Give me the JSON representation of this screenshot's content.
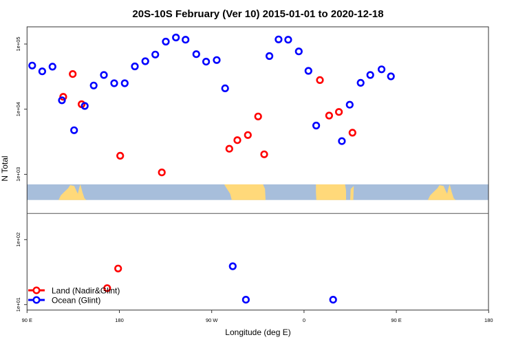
{
  "chart_data": {
    "type": "scatter",
    "title": "20S-10S February (Ver 10)   2015-01-01 to 2020-12-18",
    "xlabel": "Longitude (deg E)",
    "ylabel": "N Total",
    "x_axis_wraps": "90 E to 180 (450 degrees, longitudes 90 E-180 repeated)",
    "x_ticks": [
      "90 E",
      "180",
      "90 W",
      "0",
      "90 E",
      "180"
    ],
    "y_scale": "log",
    "panels": [
      {
        "name": "upper",
        "y_ticks": [
          "1e+05",
          "1e+04",
          "1e+03"
        ],
        "ylim": [
          250,
          184000
        ]
      },
      {
        "name": "lower",
        "y_ticks": [
          "1e+02",
          "1e+01"
        ],
        "ylim": [
          8.2,
          250
        ]
      }
    ],
    "grid": false,
    "legend_position": "bottom-left",
    "land_mask_strip": {
      "land_color": "#ffd97a",
      "ocean_color": "#a7bedb"
    },
    "series": [
      {
        "name": "Land (Nadir&Glint)",
        "color": "#ff0000",
        "points": [
          {
            "lon": 125.3,
            "n": 15500
          },
          {
            "lon": 134.5,
            "n": 34600
          },
          {
            "lon": 143.2,
            "n": 11900
          },
          {
            "lon": -179.2,
            "n": 1930
          },
          {
            "lon": -138.6,
            "n": 1070
          },
          {
            "lon": -72.8,
            "n": 2470
          },
          {
            "lon": -65.0,
            "n": 3350
          },
          {
            "lon": -54.7,
            "n": 4010
          },
          {
            "lon": -44.7,
            "n": 7730
          },
          {
            "lon": -38.8,
            "n": 2030
          },
          {
            "lon": 15.5,
            "n": 28000
          },
          {
            "lon": 24.5,
            "n": 7980
          },
          {
            "lon": 34.0,
            "n": 9080
          },
          {
            "lon": 47.2,
            "n": 4350
          },
          {
            "lon": 168.1,
            "n": 17.9
          },
          {
            "lon": 178.8,
            "n": 35.9
          }
        ]
      },
      {
        "name": "Ocean (Glint)",
        "color": "#0000ff",
        "points": [
          {
            "lon": 95.0,
            "n": 46700
          },
          {
            "lon": 104.8,
            "n": 38100
          },
          {
            "lon": 114.8,
            "n": 44900
          },
          {
            "lon": 124.0,
            "n": 13700
          },
          {
            "lon": 135.9,
            "n": 4750
          },
          {
            "lon": 146.3,
            "n": 11200
          },
          {
            "lon": 155.0,
            "n": 23100
          },
          {
            "lon": 164.9,
            "n": 33500
          },
          {
            "lon": 175.0,
            "n": 25000
          },
          {
            "lon": -174.8,
            "n": 25000
          },
          {
            "lon": -164.9,
            "n": 45400
          },
          {
            "lon": -154.7,
            "n": 54500
          },
          {
            "lon": -145.0,
            "n": 68900
          },
          {
            "lon": -134.7,
            "n": 109000
          },
          {
            "lon": -124.9,
            "n": 126000
          },
          {
            "lon": -115.5,
            "n": 116600
          },
          {
            "lon": -105.0,
            "n": 70000
          },
          {
            "lon": -95.4,
            "n": 53600
          },
          {
            "lon": -85.1,
            "n": 56800
          },
          {
            "lon": -76.9,
            "n": 20900
          },
          {
            "lon": -33.7,
            "n": 65300
          },
          {
            "lon": -24.8,
            "n": 117700
          },
          {
            "lon": -15.4,
            "n": 116600
          },
          {
            "lon": -5.1,
            "n": 77100
          },
          {
            "lon": 4.3,
            "n": 38700
          },
          {
            "lon": 11.9,
            "n": 5610
          },
          {
            "lon": 36.9,
            "n": 3240
          },
          {
            "lon": 44.5,
            "n": 11700
          },
          {
            "lon": 55.2,
            "n": 25400
          },
          {
            "lon": 64.6,
            "n": 33500
          },
          {
            "lon": 75.6,
            "n": 40900
          },
          {
            "lon": 84.7,
            "n": 31900
          },
          {
            "lon": -69.5,
            "n": 38.9
          },
          {
            "lon": -56.7,
            "n": 11.9
          },
          {
            "lon": 28.4,
            "n": 11.9
          }
        ]
      }
    ]
  }
}
